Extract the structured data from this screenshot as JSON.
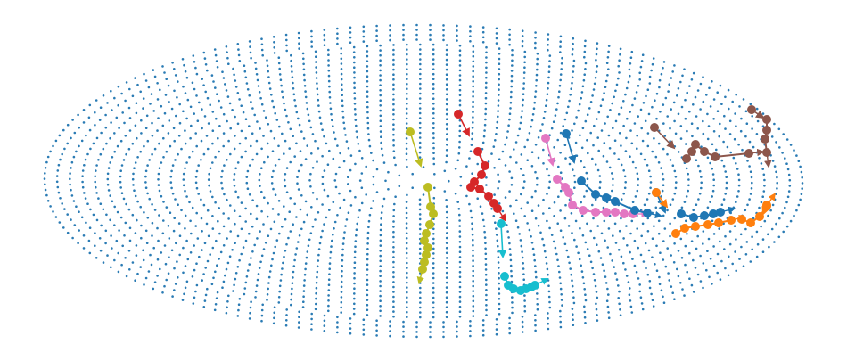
{
  "chart_data": {
    "type": "scatter",
    "title": "",
    "xlabel": "",
    "ylabel": "",
    "axes_visible": false,
    "grid": false,
    "legend": "none",
    "background_points": {
      "description_of_shape": "ellipsoid surface point cloud",
      "color": "#2a7bb4",
      "center": [
        475,
        203
      ],
      "radii": [
        425,
        175
      ]
    },
    "series": [
      {
        "color": "#bcbd22",
        "start_arrow": {
          "from": [
            460,
            148
          ],
          "to": [
            472,
            186
          ]
        },
        "points": [
          [
            480,
            210
          ],
          [
            483,
            232
          ],
          [
            486,
            240
          ],
          [
            482,
            252
          ],
          [
            478,
            262
          ],
          [
            476,
            270
          ],
          [
            480,
            278
          ],
          [
            478,
            286
          ],
          [
            476,
            294
          ],
          [
            474,
            302
          ]
        ]
      },
      {
        "color": "#d62728",
        "start_arrow": {
          "from": [
            514,
            128
          ],
          "to": [
            526,
            152
          ]
        },
        "points": [
          [
            536,
            170
          ],
          [
            544,
            186
          ],
          [
            540,
            196
          ],
          [
            532,
            204
          ],
          [
            528,
            210
          ],
          [
            538,
            212
          ],
          [
            548,
            220
          ],
          [
            554,
            228
          ],
          [
            558,
            234
          ]
        ]
      },
      {
        "color": "#17becf",
        "start_arrow": {
          "from": [
            562,
            251
          ],
          "to": [
            564,
            288
          ]
        },
        "points": [
          [
            566,
            310
          ],
          [
            570,
            320
          ],
          [
            576,
            324
          ],
          [
            584,
            326
          ],
          [
            590,
            324
          ],
          [
            596,
            322
          ],
          [
            600,
            320
          ]
        ]
      },
      {
        "color": "#e377c2",
        "start_arrow": {
          "from": [
            612,
            155
          ],
          "to": [
            620,
            185
          ]
        },
        "points": [
          [
            625,
            201
          ],
          [
            634,
            210
          ],
          [
            638,
            216
          ],
          [
            642,
            230
          ],
          [
            654,
            236
          ],
          [
            668,
            238
          ],
          [
            680,
            238
          ],
          [
            690,
            238
          ],
          [
            700,
            240
          ],
          [
            710,
            240
          ]
        ]
      },
      {
        "color": "#1f77b4",
        "start_arrow": {
          "from": [
            635,
            150
          ],
          "to": [
            644,
            182
          ]
        },
        "points": [
          [
            652,
            203
          ],
          [
            668,
            218
          ],
          [
            680,
            222
          ],
          [
            690,
            226
          ],
          [
            712,
            236
          ],
          [
            726,
            239
          ]
        ]
      },
      {
        "color": "#1f77b4",
        "start_arrow": {
          "from": [
            736,
            216
          ],
          "to": [
            746,
            238
          ]
        },
        "points": [
          [
            764,
            240
          ],
          [
            778,
            244
          ],
          [
            790,
            242
          ],
          [
            800,
            240
          ],
          [
            808,
            238
          ]
        ]
      },
      {
        "color": "#ff7f0e",
        "start_arrow": {
          "from": [
            736,
            216
          ],
          "to": [
            748,
            232
          ]
        },
        "points": [
          [
            758,
            262
          ],
          [
            768,
            256
          ],
          [
            780,
            254
          ],
          [
            794,
            252
          ],
          [
            806,
            250
          ],
          [
            820,
            247
          ]
        ]
      },
      {
        "color": "#ff7f0e",
        "start_arrow": {
          "from": [
            860,
            230
          ],
          "to": [
            856,
            240
          ]
        },
        "points": [
          [
            832,
            246
          ],
          [
            842,
            250
          ],
          [
            852,
            243
          ],
          [
            860,
            231
          ]
        ]
      },
      {
        "color": "#8c564b",
        "start_arrow": {
          "from": [
            734,
            143
          ],
          "to": [
            756,
            166
          ]
        },
        "points": [
          [
            770,
            178
          ],
          [
            776,
            170
          ],
          [
            780,
            162
          ],
          [
            790,
            170
          ],
          [
            802,
            176
          ],
          [
            840,
            172
          ]
        ]
      },
      {
        "color": "#8c564b",
        "start_arrow": {
          "from": [
            843,
            123
          ],
          "to": [
            856,
            132
          ]
        },
        "points": [
          [
            860,
            134
          ],
          [
            860,
            146
          ],
          [
            858,
            156
          ],
          [
            860,
            171
          ]
        ]
      }
    ]
  }
}
